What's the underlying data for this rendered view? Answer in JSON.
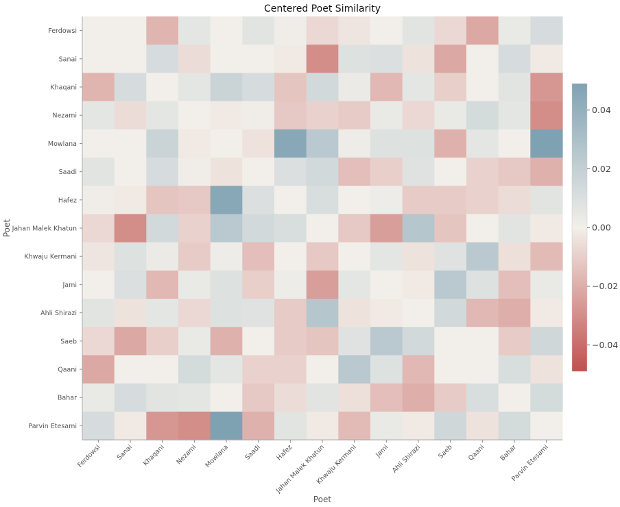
{
  "chart_data": {
    "type": "heatmap",
    "title": "Centered Poet Similarity",
    "xlabel": "Poet",
    "ylabel": "Poet",
    "rows": [
      "Ferdowsi",
      "Sanai",
      "Khaqani",
      "Nezami",
      "Mowlana",
      "Saadi",
      "Hafez",
      "Jahan Malek Khatun",
      "Khwaju Kermani",
      "Jami",
      "Ahli Shirazi",
      "Saeb",
      "Qaani",
      "Bahar",
      "Parvin Etesami"
    ],
    "columns": [
      "Ferdowsi",
      "Sanai",
      "Khaqani",
      "Nezami",
      "Mowlana",
      "Saadi",
      "Hafez",
      "Jahan Malek Khatun",
      "Khwaju Kermani",
      "Jami",
      "Ahli Shirazi",
      "Saeb",
      "Qaani",
      "Bahar",
      "Parvin Etesami"
    ],
    "values": [
      [
        0.0,
        0.0,
        -0.018,
        0.006,
        0.0,
        0.007,
        0.001,
        -0.007,
        -0.003,
        0.0,
        0.007,
        -0.007,
        -0.022,
        0.004,
        0.012
      ],
      [
        0.0,
        0.0,
        0.012,
        -0.006,
        0.0,
        0.0,
        -0.002,
        -0.03,
        0.009,
        0.01,
        -0.004,
        -0.022,
        0.0,
        0.012,
        -0.002
      ],
      [
        -0.018,
        0.012,
        0.0,
        0.006,
        0.017,
        0.012,
        -0.013,
        0.014,
        0.003,
        -0.017,
        0.006,
        -0.01,
        0.0,
        0.007,
        -0.027
      ],
      [
        0.006,
        -0.006,
        0.006,
        0.0,
        -0.002,
        0.001,
        -0.012,
        -0.009,
        -0.011,
        0.004,
        -0.007,
        0.004,
        0.013,
        0.006,
        -0.03
      ],
      [
        0.0,
        0.0,
        0.017,
        -0.002,
        0.0,
        -0.004,
        0.045,
        0.024,
        0.002,
        0.009,
        0.009,
        -0.019,
        0.006,
        0.0,
        0.049
      ],
      [
        0.007,
        0.0,
        0.012,
        0.001,
        -0.004,
        0.0,
        0.01,
        0.014,
        -0.015,
        -0.01,
        0.008,
        0.0,
        -0.009,
        -0.012,
        -0.019
      ],
      [
        0.001,
        -0.002,
        -0.013,
        -0.012,
        0.045,
        0.01,
        0.0,
        0.011,
        0.0,
        0.002,
        -0.011,
        -0.011,
        -0.009,
        -0.006,
        0.007
      ],
      [
        -0.007,
        -0.03,
        0.014,
        -0.009,
        0.024,
        0.014,
        0.011,
        0.0,
        -0.012,
        -0.025,
        0.026,
        -0.013,
        0.0,
        0.007,
        -0.002
      ],
      [
        -0.003,
        0.009,
        0.003,
        -0.011,
        0.002,
        -0.015,
        0.0,
        -0.012,
        0.0,
        0.006,
        -0.004,
        0.008,
        0.024,
        -0.005,
        -0.016
      ],
      [
        0.0,
        0.01,
        -0.017,
        0.004,
        0.009,
        -0.01,
        0.002,
        -0.025,
        0.006,
        0.0,
        -0.002,
        0.024,
        0.009,
        -0.015,
        0.004
      ],
      [
        0.007,
        -0.004,
        0.006,
        -0.007,
        0.009,
        0.008,
        -0.011,
        0.026,
        -0.004,
        -0.002,
        0.0,
        0.014,
        -0.017,
        -0.02,
        -0.002
      ],
      [
        -0.007,
        -0.022,
        -0.01,
        0.004,
        -0.019,
        0.0,
        -0.011,
        -0.013,
        0.008,
        0.024,
        0.014,
        0.0,
        0.0,
        -0.011,
        0.015
      ],
      [
        -0.022,
        0.0,
        0.0,
        0.013,
        0.006,
        -0.009,
        -0.009,
        0.0,
        0.024,
        0.009,
        -0.017,
        0.0,
        0.0,
        0.011,
        -0.004
      ],
      [
        0.004,
        0.012,
        0.007,
        0.006,
        0.0,
        -0.012,
        -0.006,
        0.007,
        -0.005,
        -0.015,
        -0.02,
        -0.011,
        0.011,
        0.0,
        0.013
      ],
      [
        0.012,
        -0.002,
        -0.027,
        -0.03,
        0.049,
        -0.019,
        0.007,
        -0.002,
        -0.016,
        0.004,
        -0.002,
        0.015,
        -0.004,
        0.013,
        0.0
      ]
    ],
    "colorbar": {
      "vmin": -0.049,
      "vmax": 0.049,
      "ticks": [
        -0.04,
        -0.02,
        0.0,
        0.02,
        0.04
      ],
      "tick_labels": [
        "−0.04",
        "−0.02",
        "0.00",
        "0.02",
        "0.04"
      ],
      "colors": {
        "negative": "#c0504d",
        "center": "#f2efea",
        "positive": "#7fa2b3"
      }
    }
  }
}
